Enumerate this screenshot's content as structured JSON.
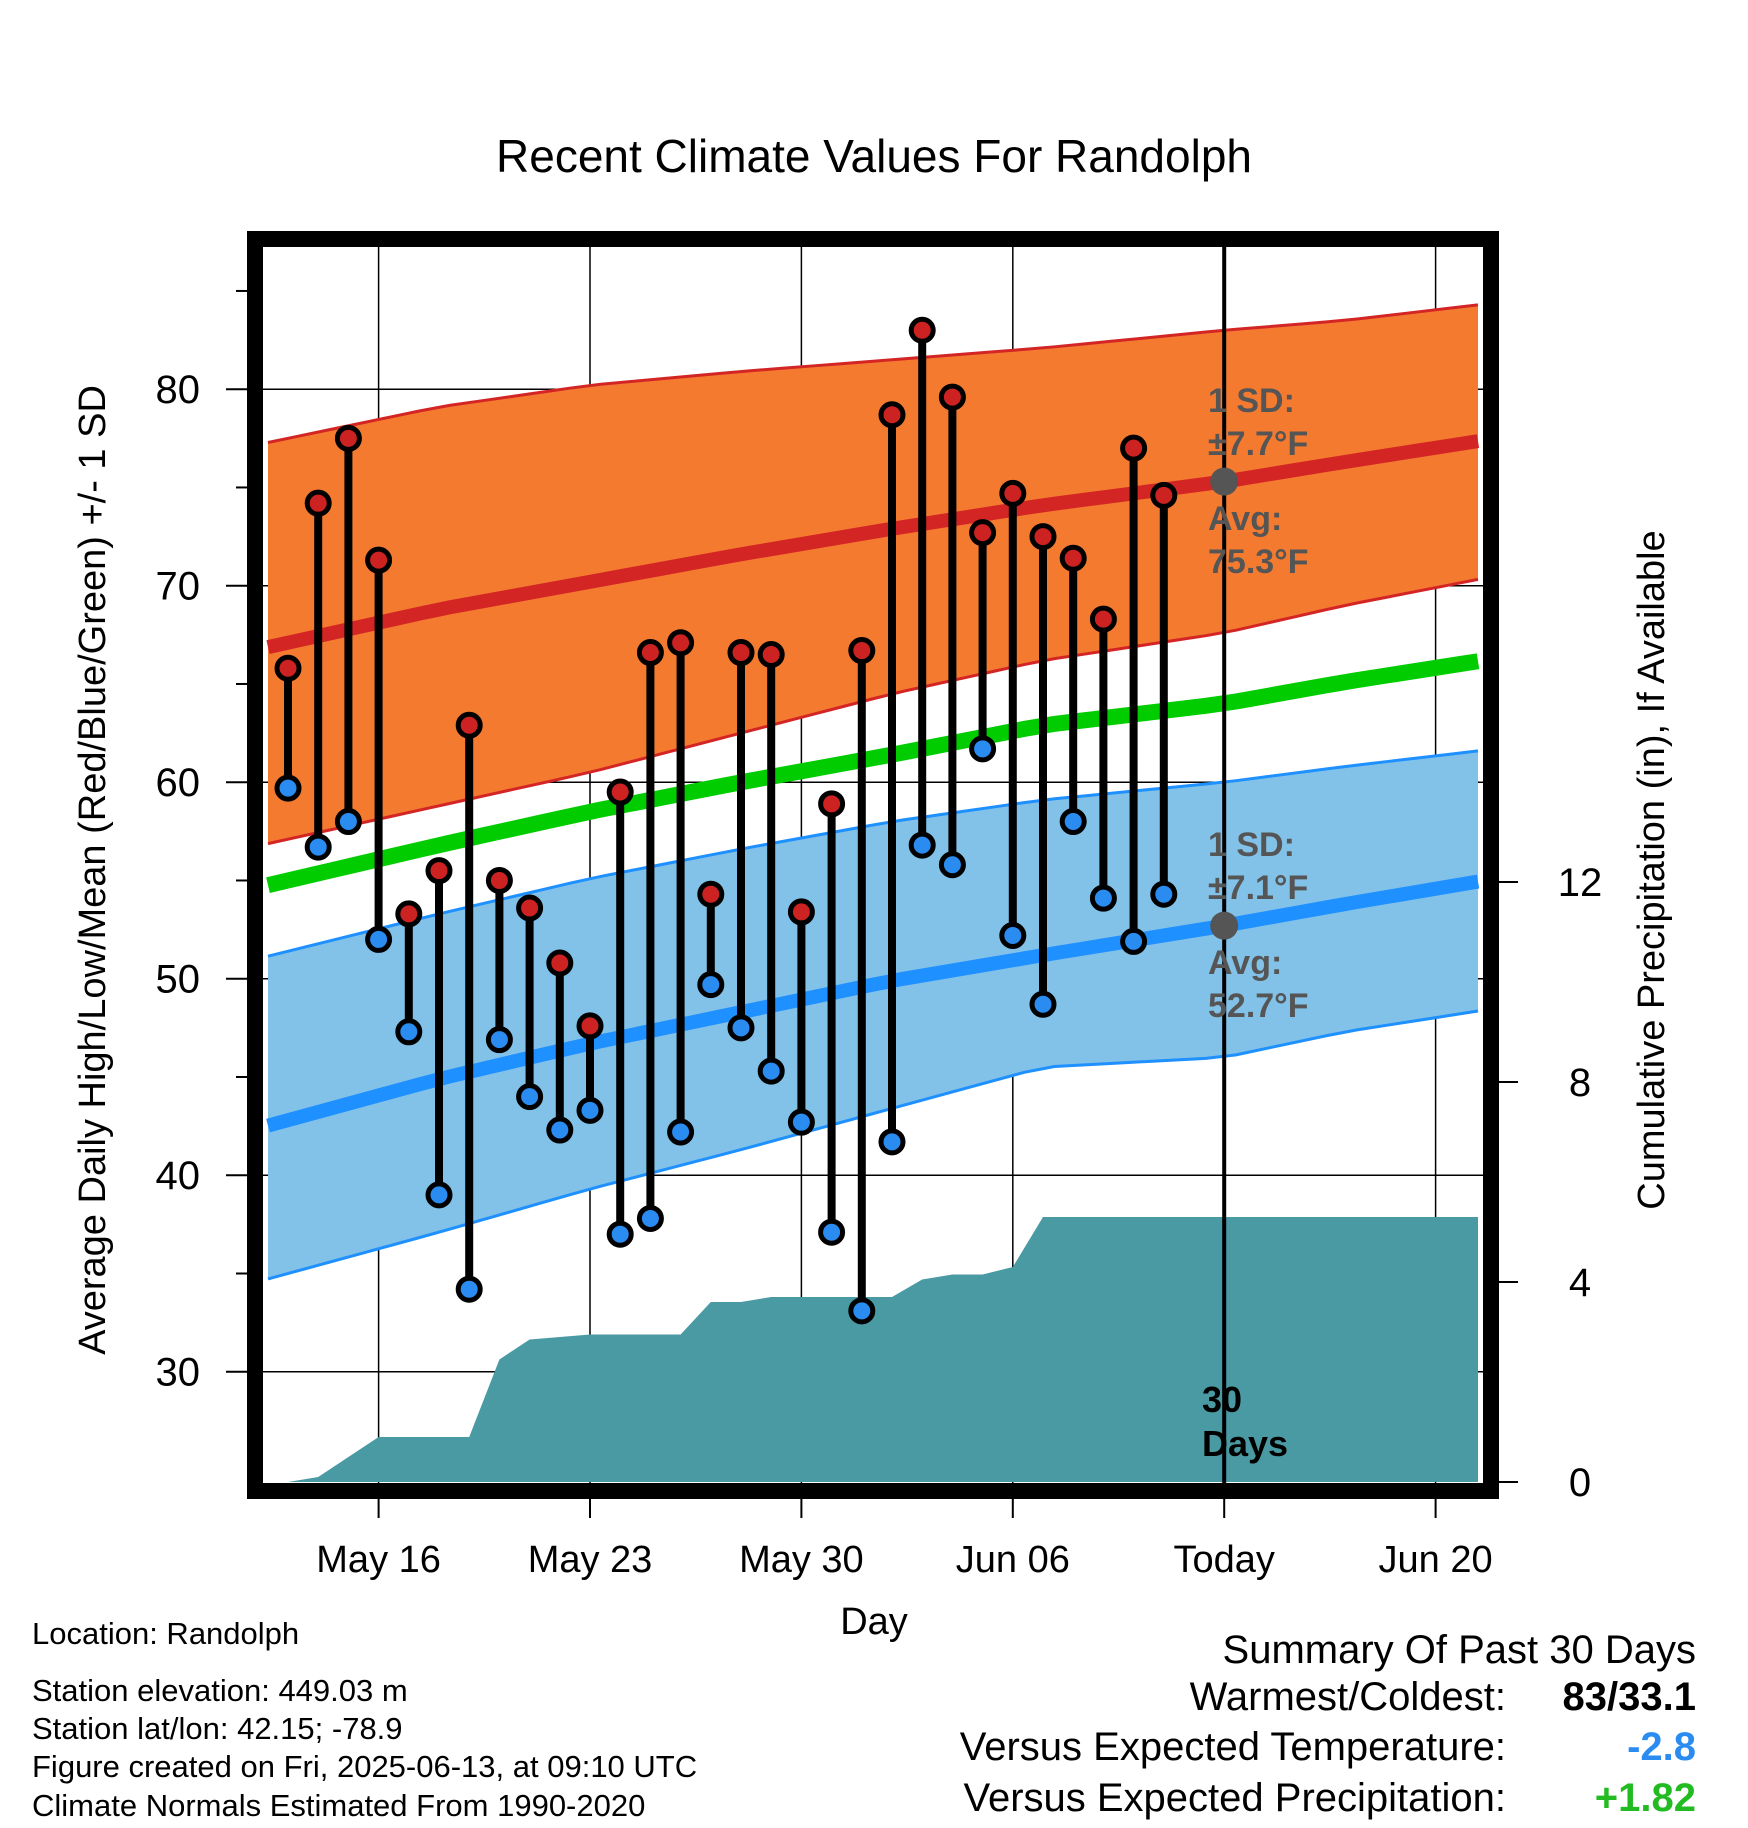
{
  "chart_data": {
    "type": "line",
    "title": "Recent Climate Values For Randolph",
    "xlabel": "Day",
    "ylabel": "Average Daily High/Low/Mean (Red/Blue/Green) +/- 1 SD",
    "y2label": "Cumulative Precipitation (in), If Available",
    "x_tick_labels": [
      "May 16",
      "May 23",
      "May 30",
      "Jun 06",
      "Today",
      "Jun 20"
    ],
    "x_tick_days": [
      3,
      10,
      17,
      24,
      31,
      38
    ],
    "xlim_days": [
      0,
      40
    ],
    "ylim": [
      25,
      88
    ],
    "y_ticks": [
      30,
      40,
      50,
      60,
      70,
      80
    ],
    "y2lim": [
      0,
      25
    ],
    "y2_ticks": [
      0,
      4,
      8,
      12
    ],
    "grid": true,
    "colors": {
      "high_band": "#f47a30",
      "high_line": "#d42525",
      "low_band": "#82c2e8",
      "low_line": "#1e90ff",
      "mean_line": "#00cc00",
      "precip": "#4a9aa4",
      "high_marker": "#cc2222",
      "low_marker": "#2a8cf0",
      "avg_marker": "#555555",
      "annotation_text": "#555555"
    },
    "normals": {
      "days": [
        0,
        5,
        10,
        15,
        20,
        25,
        31,
        35,
        40
      ],
      "high_avg": [
        67.1,
        68.8,
        70.2,
        71.6,
        72.9,
        74.1,
        75.3,
        76.3,
        77.5
      ],
      "high_upper": [
        77.5,
        79.1,
        80.2,
        80.9,
        81.5,
        82.1,
        83.0,
        83.5,
        84.4
      ],
      "high_lower": [
        57.1,
        58.8,
        60.5,
        62.5,
        64.5,
        66.2,
        67.6,
        69.0,
        70.5
      ],
      "low_avg": [
        42.8,
        44.9,
        46.7,
        48.3,
        49.9,
        51.2,
        52.7,
        53.8,
        55.1
      ],
      "low_upper": [
        51.4,
        53.3,
        55.1,
        56.6,
        58.0,
        59.1,
        60.0,
        60.8,
        61.7
      ],
      "low_lower": [
        35.0,
        37.1,
        39.3,
        41.3,
        43.4,
        45.5,
        46.0,
        47.3,
        48.5
      ],
      "mean_avg": [
        55.0,
        56.8,
        58.5,
        60.0,
        61.4,
        62.9,
        64.0,
        65.1,
        66.3
      ]
    },
    "series": [
      {
        "name": "High",
        "days": [
          0,
          1,
          2,
          3,
          4,
          5,
          6,
          7,
          8,
          9,
          10,
          11,
          12,
          13,
          14,
          15,
          16,
          17,
          18,
          19,
          20,
          21,
          22,
          23,
          24,
          25,
          26,
          27,
          28,
          29,
          30
        ],
        "values": [
          65.8,
          74.2,
          77.5,
          71.3,
          53.3,
          55.5,
          62.9,
          55.0,
          53.6,
          50.8,
          47.6,
          59.5,
          66.6,
          67.1,
          54.3,
          66.6,
          66.5,
          53.4,
          58.9,
          66.7,
          78.7,
          83.0,
          79.6,
          72.7,
          74.7,
          72.5,
          71.4,
          68.3,
          77.0,
          74.6,
          null
        ]
      },
      {
        "name": "Low",
        "days": [
          0,
          1,
          2,
          3,
          4,
          5,
          6,
          7,
          8,
          9,
          10,
          11,
          12,
          13,
          14,
          15,
          16,
          17,
          18,
          19,
          20,
          21,
          22,
          23,
          24,
          25,
          26,
          27,
          28,
          29,
          30
        ],
        "values": [
          59.7,
          56.7,
          58.0,
          52.0,
          47.3,
          39.0,
          34.2,
          46.9,
          44.0,
          42.3,
          43.3,
          37.0,
          37.8,
          42.2,
          49.7,
          47.5,
          45.3,
          42.7,
          37.1,
          33.1,
          41.7,
          56.8,
          55.8,
          61.7,
          52.2,
          48.7,
          58.0,
          54.1,
          51.9,
          54.3,
          null
        ]
      },
      {
        "name": "Cumulative Precipitation",
        "days": [
          0,
          1,
          3,
          4,
          5,
          6,
          7,
          8,
          9,
          10,
          11,
          12,
          13,
          14,
          15,
          16,
          17,
          18,
          19,
          20,
          21,
          22,
          23,
          24,
          25,
          26,
          27,
          28,
          29,
          30,
          31,
          40
        ],
        "values": [
          0.0,
          0.1,
          0.9,
          0.9,
          0.9,
          0.9,
          2.45,
          2.85,
          2.9,
          2.95,
          2.95,
          2.95,
          2.95,
          3.6,
          3.6,
          3.7,
          3.7,
          3.7,
          3.7,
          3.7,
          4.05,
          4.15,
          4.15,
          4.3,
          5.3,
          5.3,
          5.3,
          5.3,
          5.3,
          5.3,
          5.3,
          5.3
        ]
      }
    ],
    "annotations": {
      "high_sd_label": "1 SD:",
      "high_sd_value": "±7.7°F",
      "high_avg_label": "Avg:",
      "high_avg_value": "75.3°F",
      "low_sd_label": "1 SD:",
      "low_sd_value": "±7.1°F",
      "low_avg_label": "Avg:",
      "low_avg_value": "52.7°F",
      "window_count": "30",
      "window_unit": "Days"
    }
  },
  "footer": {
    "location": "Location: Randolph",
    "elevation": "Station elevation: 449.03 m",
    "latlon": "Station lat/lon: 42.15; -78.9",
    "created": "Figure created on Fri, 2025-06-13, at 09:10 UTC",
    "normals": "Climate Normals Estimated From 1990-2020"
  },
  "summary": {
    "title": "Summary Of Past 30 Days",
    "warm_cold_label": "Warmest/Coldest:",
    "warm_cold_value": "83/33.1",
    "temp_label": "Versus Expected Temperature:",
    "temp_value": "-2.8",
    "temp_color": "#2a8cf0",
    "precip_label": "Versus Expected Precipitation:",
    "precip_value": "+1.82",
    "precip_color": "#22bb22"
  }
}
